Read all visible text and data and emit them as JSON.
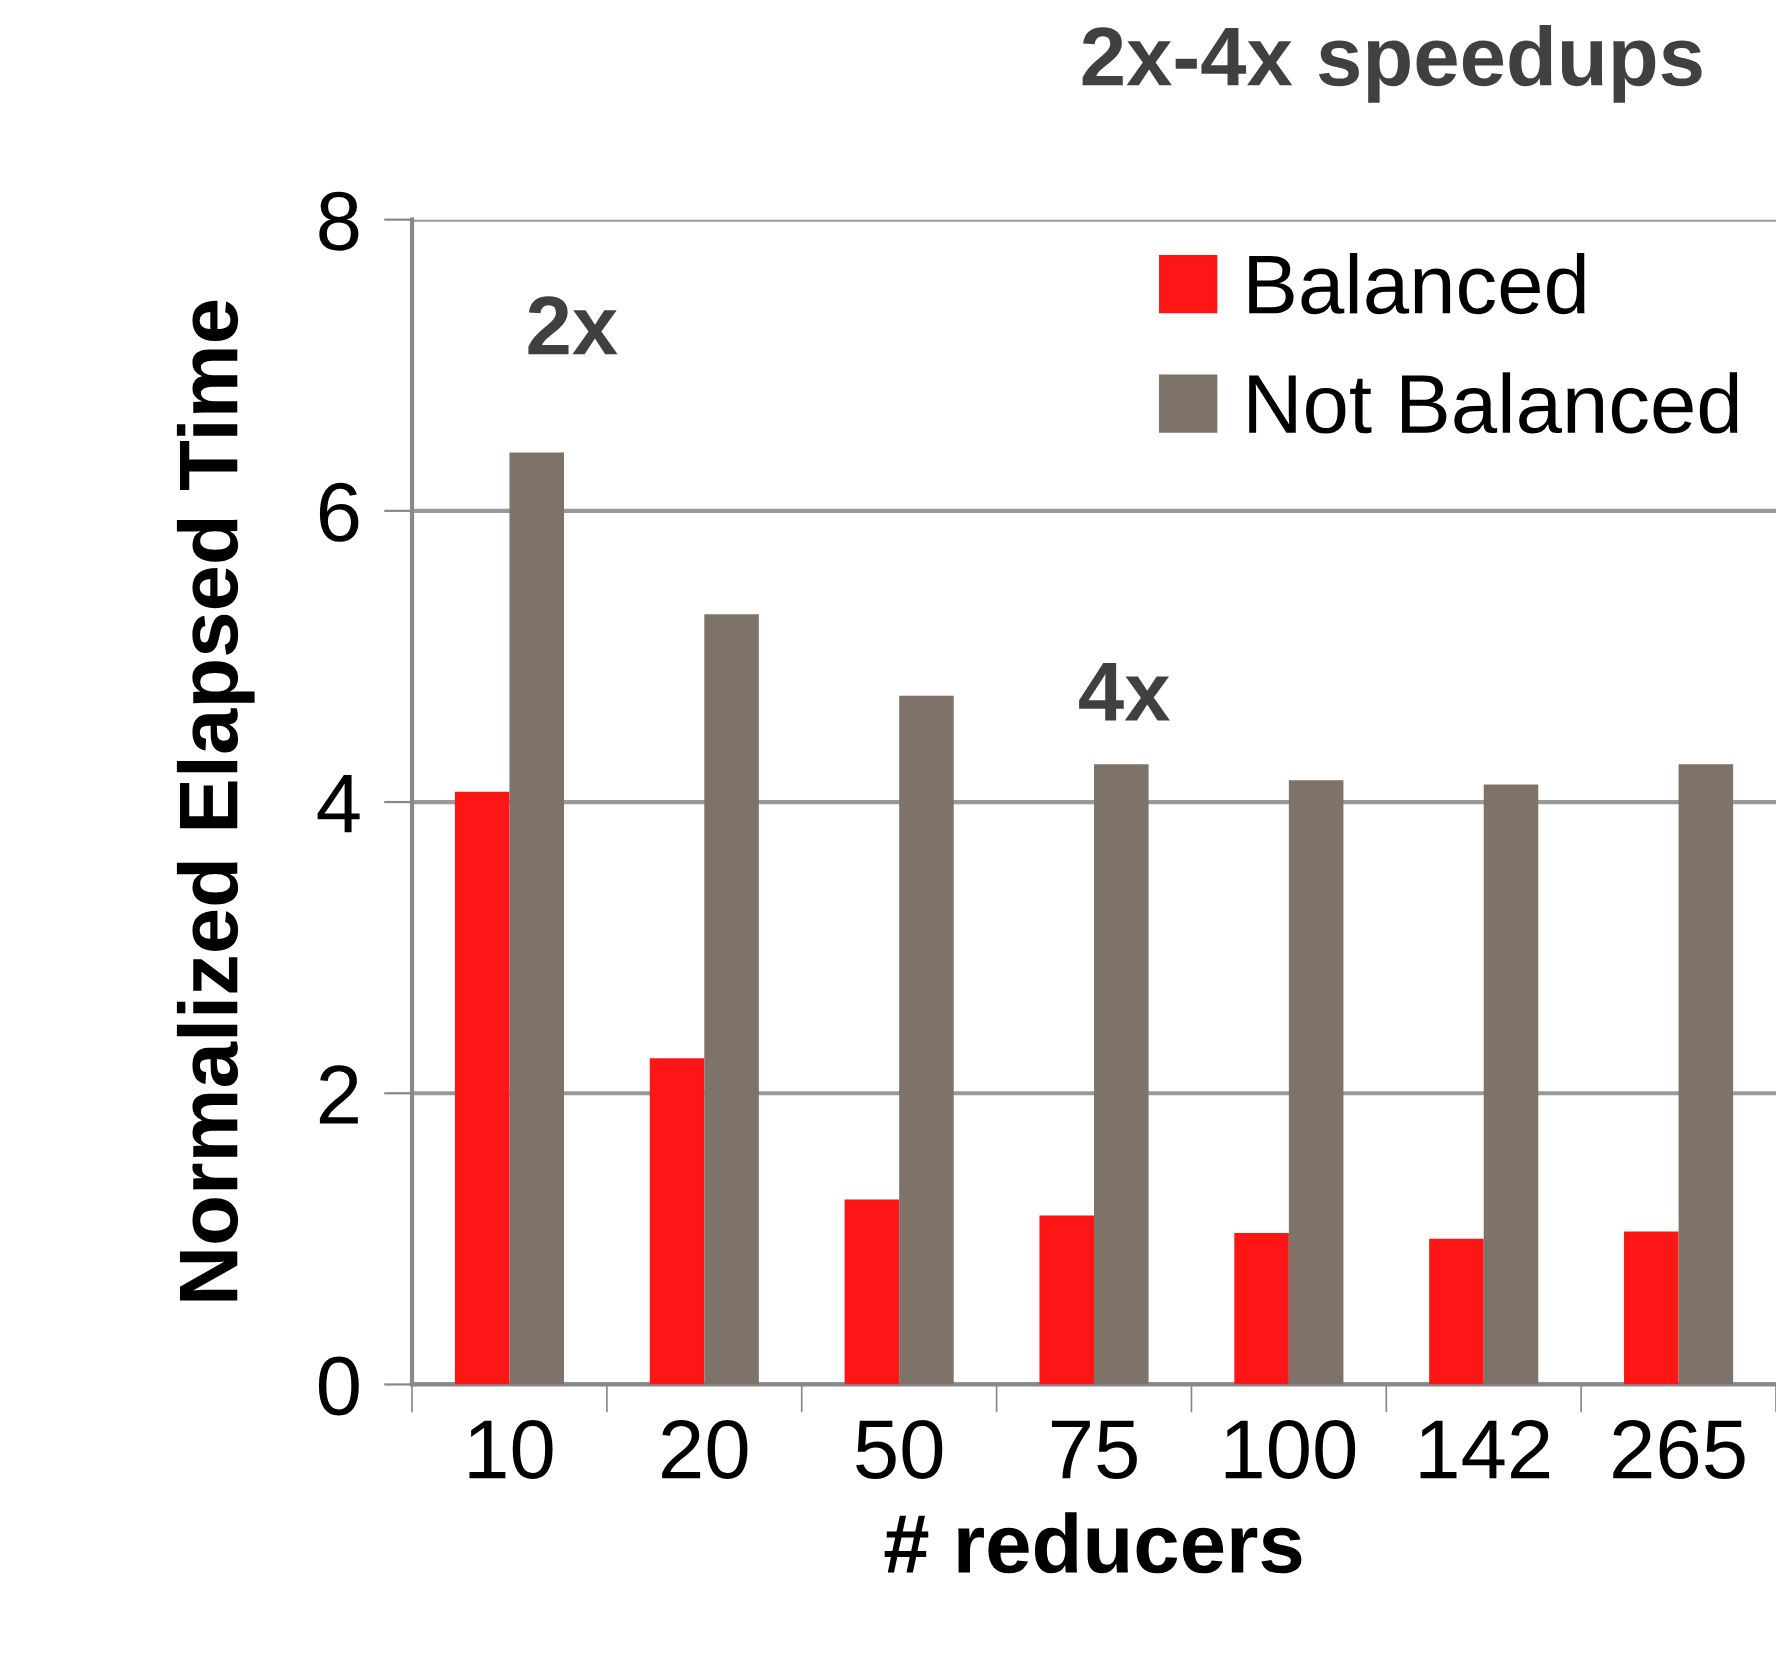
{
  "chart_data": {
    "type": "bar",
    "title": "2x-4x speedups",
    "xlabel": "# reducers",
    "ylabel": "Normalized Elapsed Time",
    "categories": [
      "10",
      "20",
      "50",
      "75",
      "100",
      "142",
      "265"
    ],
    "series": [
      {
        "name": "Balanced",
        "color": "#fe1616",
        "values": [
          4.07,
          2.24,
          1.27,
          1.16,
          1.04,
          1.0,
          1.05
        ]
      },
      {
        "name": "Not Balanced",
        "color": "#7d7369",
        "values": [
          6.4,
          5.29,
          4.73,
          4.26,
          4.15,
          4.12,
          4.26
        ]
      }
    ],
    "annotations": [
      "2x",
      "4x"
    ],
    "ylim": [
      0,
      8
    ],
    "yticks": [
      0,
      2,
      4,
      6,
      8
    ],
    "grid": "y",
    "legend": "top right"
  }
}
